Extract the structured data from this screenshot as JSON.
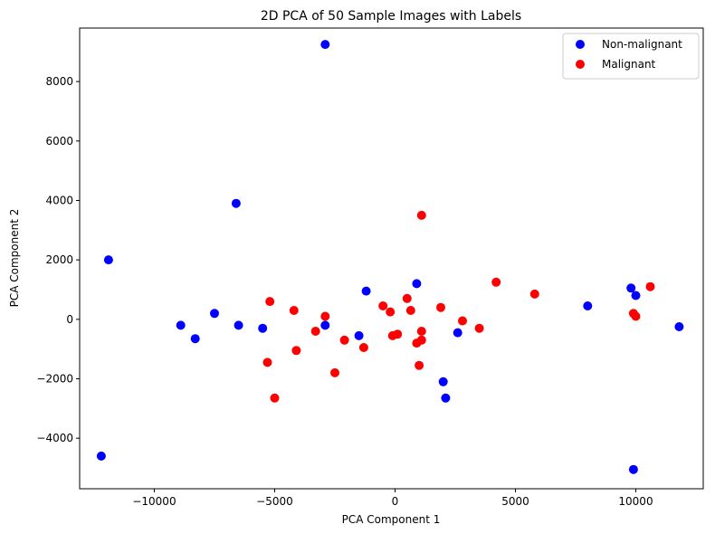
{
  "chart_data": {
    "type": "scatter",
    "title": "2D PCA of 50 Sample Images with Labels",
    "xlabel": "PCA Component 1",
    "ylabel": "PCA Component 2",
    "xlim": [
      -13100,
      12800
    ],
    "ylim": [
      -5700,
      9800
    ],
    "xticks": [
      -10000,
      -5000,
      0,
      5000,
      10000
    ],
    "xtick_labels": [
      "−10000",
      "−5000",
      "0",
      "5000",
      "10000"
    ],
    "yticks": [
      -4000,
      -2000,
      0,
      2000,
      4000,
      6000,
      8000
    ],
    "ytick_labels": [
      "−4000",
      "−2000",
      "0",
      "2000",
      "4000",
      "6000",
      "8000"
    ],
    "grid": false,
    "legend_position": "top-right",
    "series": [
      {
        "name": "Non-malignant",
        "color": "#0000ff",
        "points": [
          {
            "x": -2900,
            "y": 9250
          },
          {
            "x": -6600,
            "y": 3900
          },
          {
            "x": -11900,
            "y": 2000
          },
          {
            "x": -12200,
            "y": -4600
          },
          {
            "x": -8900,
            "y": -200
          },
          {
            "x": -8300,
            "y": -650
          },
          {
            "x": -7500,
            "y": 200
          },
          {
            "x": -6500,
            "y": -200
          },
          {
            "x": -5500,
            "y": -300
          },
          {
            "x": -2900,
            "y": -200
          },
          {
            "x": -1500,
            "y": -550
          },
          {
            "x": -1200,
            "y": 950
          },
          {
            "x": 900,
            "y": 1200
          },
          {
            "x": 2000,
            "y": -2100
          },
          {
            "x": 2100,
            "y": -2650
          },
          {
            "x": 2600,
            "y": -450
          },
          {
            "x": 8000,
            "y": 450
          },
          {
            "x": 9800,
            "y": 1050
          },
          {
            "x": 10000,
            "y": 800
          },
          {
            "x": 11800,
            "y": -250
          },
          {
            "x": 9900,
            "y": -5050
          }
        ]
      },
      {
        "name": "Malignant",
        "color": "#ff0000",
        "points": [
          {
            "x": 1100,
            "y": 3500
          },
          {
            "x": 4200,
            "y": 1250
          },
          {
            "x": 5800,
            "y": 850
          },
          {
            "x": 10600,
            "y": 1100
          },
          {
            "x": 9900,
            "y": 200
          },
          {
            "x": 10000,
            "y": 100
          },
          {
            "x": -5200,
            "y": 600
          },
          {
            "x": -4200,
            "y": 300
          },
          {
            "x": -2900,
            "y": 100
          },
          {
            "x": -3300,
            "y": -400
          },
          {
            "x": -4100,
            "y": -1050
          },
          {
            "x": -5300,
            "y": -1450
          },
          {
            "x": -5000,
            "y": -2650
          },
          {
            "x": -2500,
            "y": -1800
          },
          {
            "x": -2100,
            "y": -700
          },
          {
            "x": -1300,
            "y": -950
          },
          {
            "x": -500,
            "y": 450
          },
          {
            "x": -200,
            "y": 250
          },
          {
            "x": -100,
            "y": -550
          },
          {
            "x": 100,
            "y": -500
          },
          {
            "x": 500,
            "y": 700
          },
          {
            "x": 650,
            "y": 300
          },
          {
            "x": 900,
            "y": -800
          },
          {
            "x": 1100,
            "y": -400
          },
          {
            "x": 1100,
            "y": -700
          },
          {
            "x": 1000,
            "y": -1550
          },
          {
            "x": 1900,
            "y": 400
          },
          {
            "x": 2800,
            "y": -50
          },
          {
            "x": 3500,
            "y": -300
          }
        ]
      }
    ]
  }
}
